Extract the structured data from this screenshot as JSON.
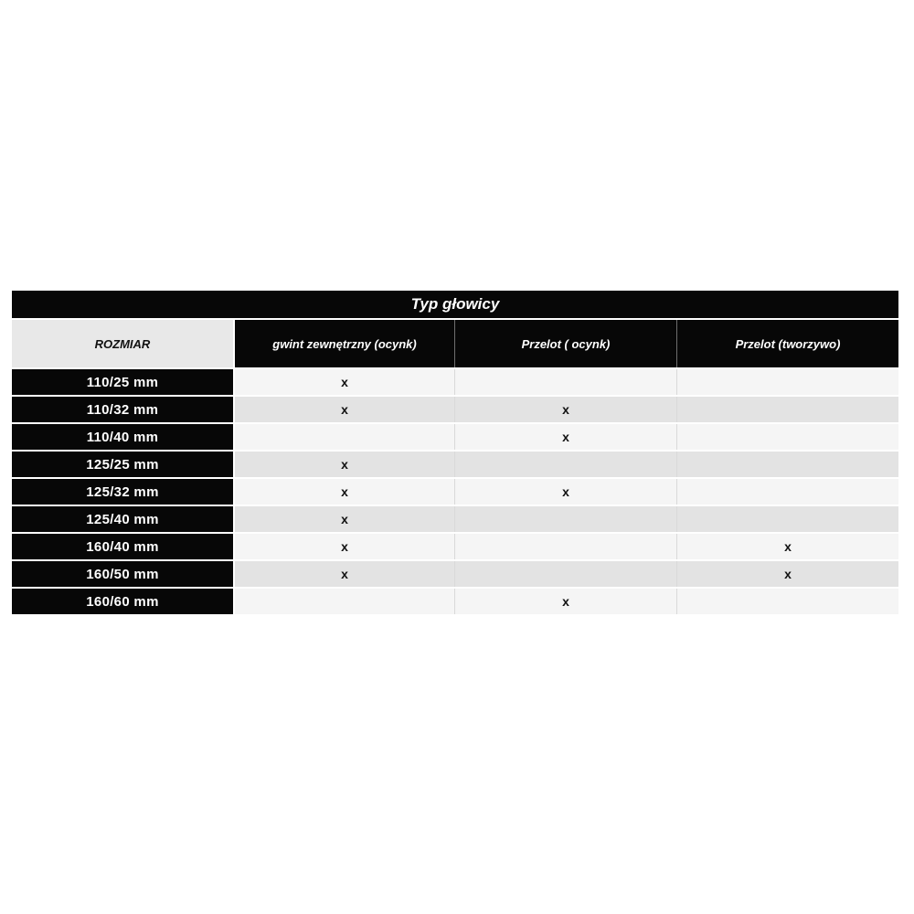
{
  "table": {
    "title": "Typ głowicy",
    "columns": {
      "size": "ROZMIAR",
      "col1": "gwint zewnętrzny (ocynk)",
      "col2": "Przelot ( ocynk)",
      "col3": "Przelot (tworzywo)"
    },
    "mark_symbol": "x",
    "rows": [
      {
        "size": "110/25 mm",
        "cells": [
          "x",
          "",
          ""
        ]
      },
      {
        "size": "110/32 mm",
        "cells": [
          "x",
          "x",
          ""
        ]
      },
      {
        "size": "110/40 mm",
        "cells": [
          "",
          "x",
          ""
        ]
      },
      {
        "size": "125/25 mm",
        "cells": [
          "x",
          "",
          ""
        ]
      },
      {
        "size": "125/32 mm",
        "cells": [
          "x",
          "x",
          ""
        ]
      },
      {
        "size": "125/40 mm",
        "cells": [
          "x",
          "",
          ""
        ]
      },
      {
        "size": "160/40 mm",
        "cells": [
          "x",
          "",
          "x"
        ]
      },
      {
        "size": "160/50 mm",
        "cells": [
          "x",
          "",
          "x"
        ]
      },
      {
        "size": "160/60 mm",
        "cells": [
          "",
          "x",
          ""
        ]
      }
    ],
    "colors": {
      "header_bg": "#070707",
      "header_text": "#ffffff",
      "rozmiar_bg": "#e8e8e8",
      "row_light_bg": "#f5f5f5",
      "row_dark_bg": "#e3e3e3",
      "mark_color": "#111111"
    }
  }
}
